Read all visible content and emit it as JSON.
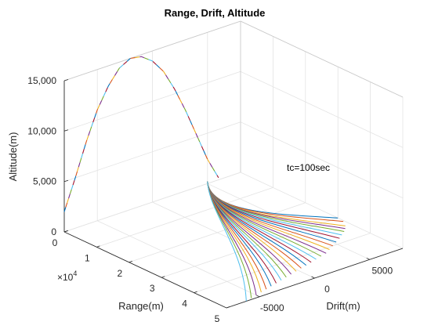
{
  "chart_data": {
    "type": "line",
    "projection": "3d",
    "title": "Range, Drift, Altitude",
    "xlabel": "Range(m)",
    "ylabel": "Drift(m)",
    "zlabel": "Altitude(m)",
    "x_exponent_label": "×10",
    "x_exponent_power": "4",
    "annotation": "tc=100sec",
    "xlim": [
      0,
      50000
    ],
    "ylim": [
      -8000,
      8000
    ],
    "zlim": [
      0,
      15000
    ],
    "x_ticks": [
      "0",
      "1",
      "2",
      "3",
      "4",
      "5"
    ],
    "y_ticks": [
      "-5000",
      "0",
      "5000"
    ],
    "z_ticks": [
      "0",
      "5,000",
      "10,000",
      "15,000"
    ],
    "grid": true,
    "ascent": {
      "range": [
        0,
        0,
        0,
        0,
        0,
        0,
        0,
        0,
        0,
        0,
        0,
        0,
        0,
        0,
        0
      ],
      "drift": [
        -8000,
        -7000,
        -6000,
        -5000,
        -4000,
        -3000,
        -2000,
        -1000,
        0,
        1000,
        2000,
        3000,
        4000,
        5000,
        6000
      ],
      "altitude": [
        2000,
        5000,
        8200,
        11000,
        13000,
        14400,
        15000,
        14800,
        14000,
        12600,
        10500,
        8000,
        5200,
        2400,
        200
      ]
    },
    "descent": {
      "impact_range": 28000,
      "impact_drift": 3600,
      "endpoints": [
        {
          "range": 30000,
          "drift": 8000
        },
        {
          "range": 32000,
          "drift": 7900
        },
        {
          "range": 34000,
          "drift": 7500
        },
        {
          "range": 35000,
          "drift": 7200
        },
        {
          "range": 36000,
          "drift": 6800
        },
        {
          "range": 37000,
          "drift": 6300
        },
        {
          "range": 38000,
          "drift": 5800
        },
        {
          "range": 39000,
          "drift": 5200
        },
        {
          "range": 40000,
          "drift": 4600
        },
        {
          "range": 41000,
          "drift": 4000
        },
        {
          "range": 42000,
          "drift": 3400
        },
        {
          "range": 42500,
          "drift": 2800
        },
        {
          "range": 43000,
          "drift": 2200
        },
        {
          "range": 43500,
          "drift": 1600
        },
        {
          "range": 44000,
          "drift": 1000
        },
        {
          "range": 44500,
          "drift": 400
        },
        {
          "range": 45000,
          "drift": -200
        },
        {
          "range": 45500,
          "drift": -800
        },
        {
          "range": 46000,
          "drift": -1400
        },
        {
          "range": 46500,
          "drift": -2000
        },
        {
          "range": 47000,
          "drift": -2600
        },
        {
          "range": 47500,
          "drift": -3200
        },
        {
          "range": 48000,
          "drift": -3800
        },
        {
          "range": 48500,
          "drift": -4400
        },
        {
          "range": 49000,
          "drift": -5000
        },
        {
          "range": 49500,
          "drift": -5600
        },
        {
          "range": 50000,
          "drift": -6200
        }
      ]
    }
  }
}
